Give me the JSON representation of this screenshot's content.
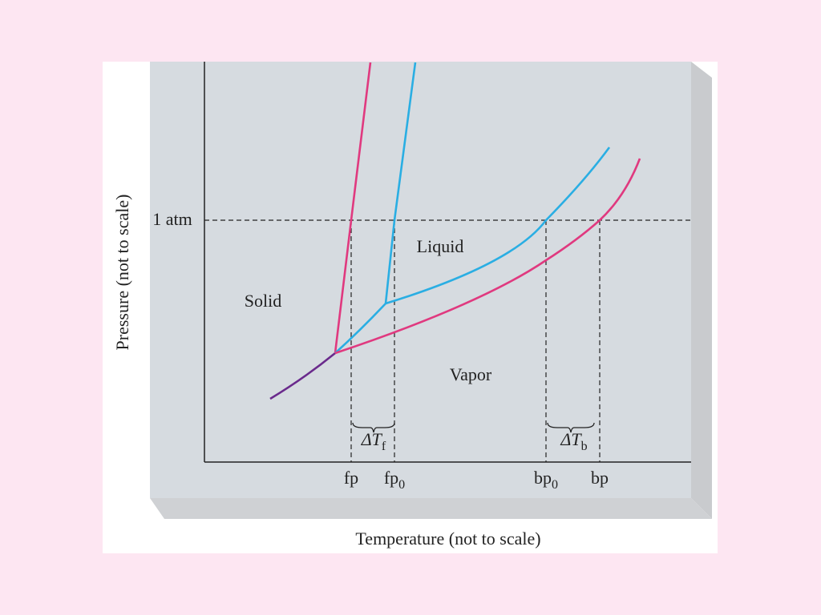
{
  "axes": {
    "x_label": "Temperature (not to scale)",
    "y_label": "Pressure (not to scale)",
    "y_tick": "1 atm"
  },
  "regions": [
    "Solid",
    "Liquid",
    "Vapor"
  ],
  "x_ticks": [
    {
      "main": "fp"
    },
    {
      "main": "fp",
      "sub": "0"
    },
    {
      "main": "bp",
      "sub": "0"
    },
    {
      "main": "bp"
    }
  ],
  "intervals": [
    {
      "main": "ΔT",
      "sub": "f"
    },
    {
      "main": "ΔT",
      "sub": "b"
    }
  ]
}
